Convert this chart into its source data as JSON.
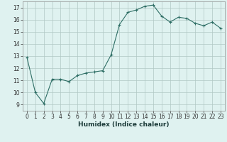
{
  "x": [
    0,
    1,
    2,
    3,
    4,
    5,
    6,
    7,
    8,
    9,
    10,
    11,
    12,
    13,
    14,
    15,
    16,
    17,
    18,
    19,
    20,
    21,
    22,
    23
  ],
  "y": [
    12.9,
    10.0,
    9.1,
    11.1,
    11.1,
    10.9,
    11.4,
    11.6,
    11.7,
    11.8,
    13.1,
    15.6,
    16.6,
    16.8,
    17.1,
    17.2,
    16.3,
    15.8,
    16.2,
    16.1,
    15.7,
    15.5,
    15.8,
    15.3
  ],
  "line_color": "#2e6e65",
  "marker": "+",
  "bg_color": "#dff2f0",
  "grid_color": "#b0c8c4",
  "xlabel": "Humidex (Indice chaleur)",
  "xlim": [
    -0.5,
    23.5
  ],
  "ylim": [
    8.5,
    17.5
  ],
  "yticks": [
    9,
    10,
    11,
    12,
    13,
    14,
    15,
    16,
    17
  ],
  "xticks": [
    0,
    1,
    2,
    3,
    4,
    5,
    6,
    7,
    8,
    9,
    10,
    11,
    12,
    13,
    14,
    15,
    16,
    17,
    18,
    19,
    20,
    21,
    22,
    23
  ],
  "xlabel_fontsize": 6.5,
  "tick_fontsize": 5.5
}
